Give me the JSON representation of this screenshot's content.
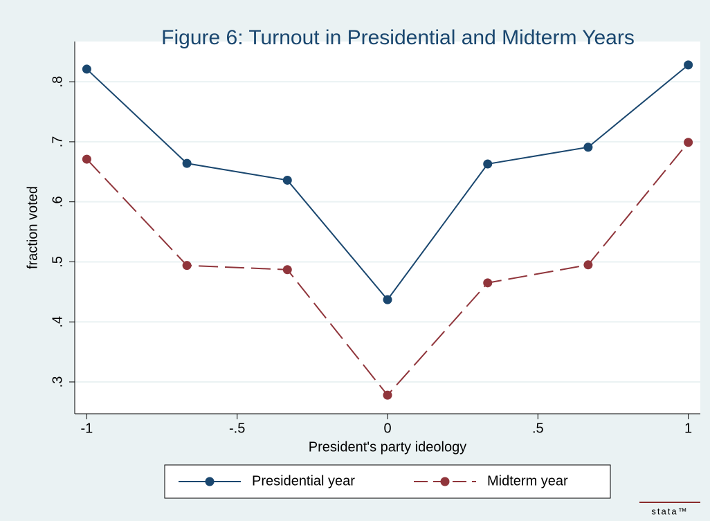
{
  "chart_data": {
    "type": "line",
    "title": "Figure 6: Turnout in Presidential and Midterm Years",
    "x_label": "President's party ideology",
    "y_label": "fraction voted",
    "x": [
      -1,
      -0.667,
      -0.333,
      0,
      0.333,
      0.667,
      1
    ],
    "series": [
      {
        "name": "Presidential year",
        "color": "#1a476f",
        "dash": false,
        "values": [
          0.821,
          0.664,
          0.636,
          0.437,
          0.663,
          0.691,
          0.828
        ]
      },
      {
        "name": "Midterm year",
        "color": "#90353b",
        "dash": true,
        "values": [
          0.671,
          0.494,
          0.487,
          0.278,
          0.465,
          0.495,
          0.699
        ]
      }
    ],
    "xlim": [
      -1.04,
      1.04
    ],
    "ylim": [
      0.247,
      0.867
    ],
    "xticks": [
      -1,
      {
        "value": -0.5,
        "label": "-.5"
      },
      0,
      {
        "value": 0.5,
        "label": ".5"
      },
      1
    ],
    "yticks": [
      {
        "value": 0.3,
        "label": ".3"
      },
      {
        "value": 0.4,
        "label": ".4"
      },
      {
        "value": 0.5,
        "label": ".5"
      },
      {
        "value": 0.6,
        "label": ".6"
      },
      {
        "value": 0.7,
        "label": ".7"
      },
      {
        "value": 0.8,
        "label": ".8"
      }
    ],
    "grid": true,
    "legend": "bottom",
    "watermark": "stata™"
  }
}
